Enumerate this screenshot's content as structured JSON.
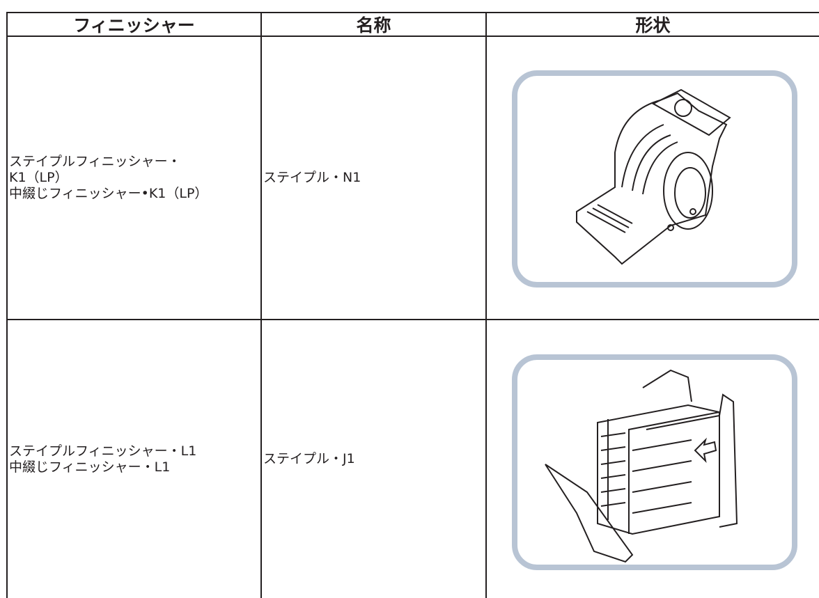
{
  "table": {
    "header": [
      "フィニッシャー",
      "名称",
      "形状"
    ],
    "rows": [
      {
        "finisher": [
          "ステイプルフィニッシャー・",
          "K1（LP）",
          "中綴じフィニッシャー•K1（LP）"
        ],
        "name": "ステイプル・N1"
      },
      {
        "finisher": [
          "ステイプルフィニッシャー・L1",
          "中綴じフィニッシャー・L1"
        ],
        "name": "ステイプル・J1"
      }
    ]
  }
}
